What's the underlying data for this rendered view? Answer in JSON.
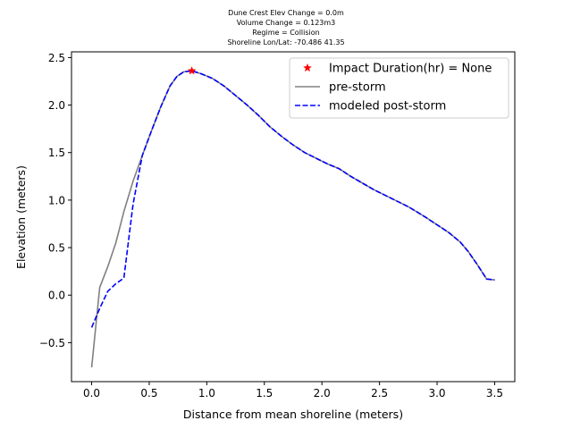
{
  "chart_data": {
    "type": "line",
    "title_lines": [
      "Dune Crest Elev Change = 0.0m",
      "Volume Change = 0.123m3",
      "Regime = Collision",
      "Shoreline Lon/Lat: -70.486 41.35"
    ],
    "xlabel": "Distance from mean shoreline (meters)",
    "ylabel": "Elevation (meters)",
    "xlim": [
      -0.175,
      3.675
    ],
    "ylim": [
      -0.91,
      2.56
    ],
    "x_ticks": [
      0.0,
      0.5,
      1.0,
      1.5,
      2.0,
      2.5,
      3.0,
      3.5
    ],
    "x_tick_labels": [
      "0.0",
      "0.5",
      "1.0",
      "1.5",
      "2.0",
      "2.5",
      "3.0",
      "3.5"
    ],
    "y_ticks": [
      -0.5,
      0.0,
      0.5,
      1.0,
      1.5,
      2.0,
      2.5
    ],
    "y_tick_labels": [
      "−0.5",
      "0.0",
      "0.5",
      "1.0",
      "1.5",
      "2.0",
      "2.5"
    ],
    "legend_position": "top-right",
    "series": [
      {
        "name": "pre-storm",
        "color": "#808080",
        "style": "solid",
        "x": [
          0.0,
          0.07,
          0.14,
          0.21,
          0.28,
          0.36,
          0.44,
          0.52,
          0.6,
          0.68,
          0.74,
          0.8,
          0.87,
          0.95,
          1.05,
          1.15,
          1.25,
          1.35,
          1.45,
          1.55,
          1.65,
          1.75,
          1.85,
          1.95,
          2.05,
          2.15,
          2.25,
          2.35,
          2.45,
          2.55,
          2.65,
          2.75,
          2.82,
          2.9,
          3.0,
          3.1,
          3.2,
          3.27,
          3.35,
          3.43,
          3.5
        ],
        "y": [
          -0.76,
          0.08,
          0.3,
          0.55,
          0.88,
          1.2,
          1.47,
          1.73,
          1.98,
          2.2,
          2.3,
          2.35,
          2.36,
          2.33,
          2.28,
          2.2,
          2.1,
          2.0,
          1.89,
          1.77,
          1.67,
          1.58,
          1.5,
          1.44,
          1.38,
          1.33,
          1.25,
          1.18,
          1.11,
          1.05,
          0.99,
          0.93,
          0.88,
          0.82,
          0.74,
          0.66,
          0.56,
          0.46,
          0.32,
          0.17,
          0.16
        ]
      },
      {
        "name": "modeled post-storm",
        "color": "#0000ff",
        "style": "dashed",
        "x": [
          0.0,
          0.07,
          0.14,
          0.21,
          0.28,
          0.36,
          0.44,
          0.52,
          0.6,
          0.68,
          0.74,
          0.8,
          0.87,
          0.95,
          1.05,
          1.15,
          1.25,
          1.35,
          1.45,
          1.55,
          1.65,
          1.75,
          1.85,
          1.95,
          2.05,
          2.15,
          2.25,
          2.35,
          2.45,
          2.55,
          2.65,
          2.75,
          2.82,
          2.9,
          3.0,
          3.1,
          3.2,
          3.27,
          3.35,
          3.43,
          3.5
        ],
        "y": [
          -0.34,
          -0.14,
          0.04,
          0.12,
          0.18,
          0.96,
          1.47,
          1.73,
          1.98,
          2.2,
          2.3,
          2.35,
          2.36,
          2.33,
          2.28,
          2.2,
          2.1,
          2.0,
          1.89,
          1.77,
          1.67,
          1.58,
          1.5,
          1.44,
          1.38,
          1.33,
          1.25,
          1.18,
          1.11,
          1.05,
          0.99,
          0.93,
          0.88,
          0.82,
          0.74,
          0.66,
          0.56,
          0.46,
          0.32,
          0.17,
          0.16
        ]
      }
    ],
    "markers": [
      {
        "name": "Impact Duration(hr) = None",
        "color": "#ff0000",
        "symbol": "star",
        "x": 0.87,
        "y": 2.36
      }
    ]
  }
}
